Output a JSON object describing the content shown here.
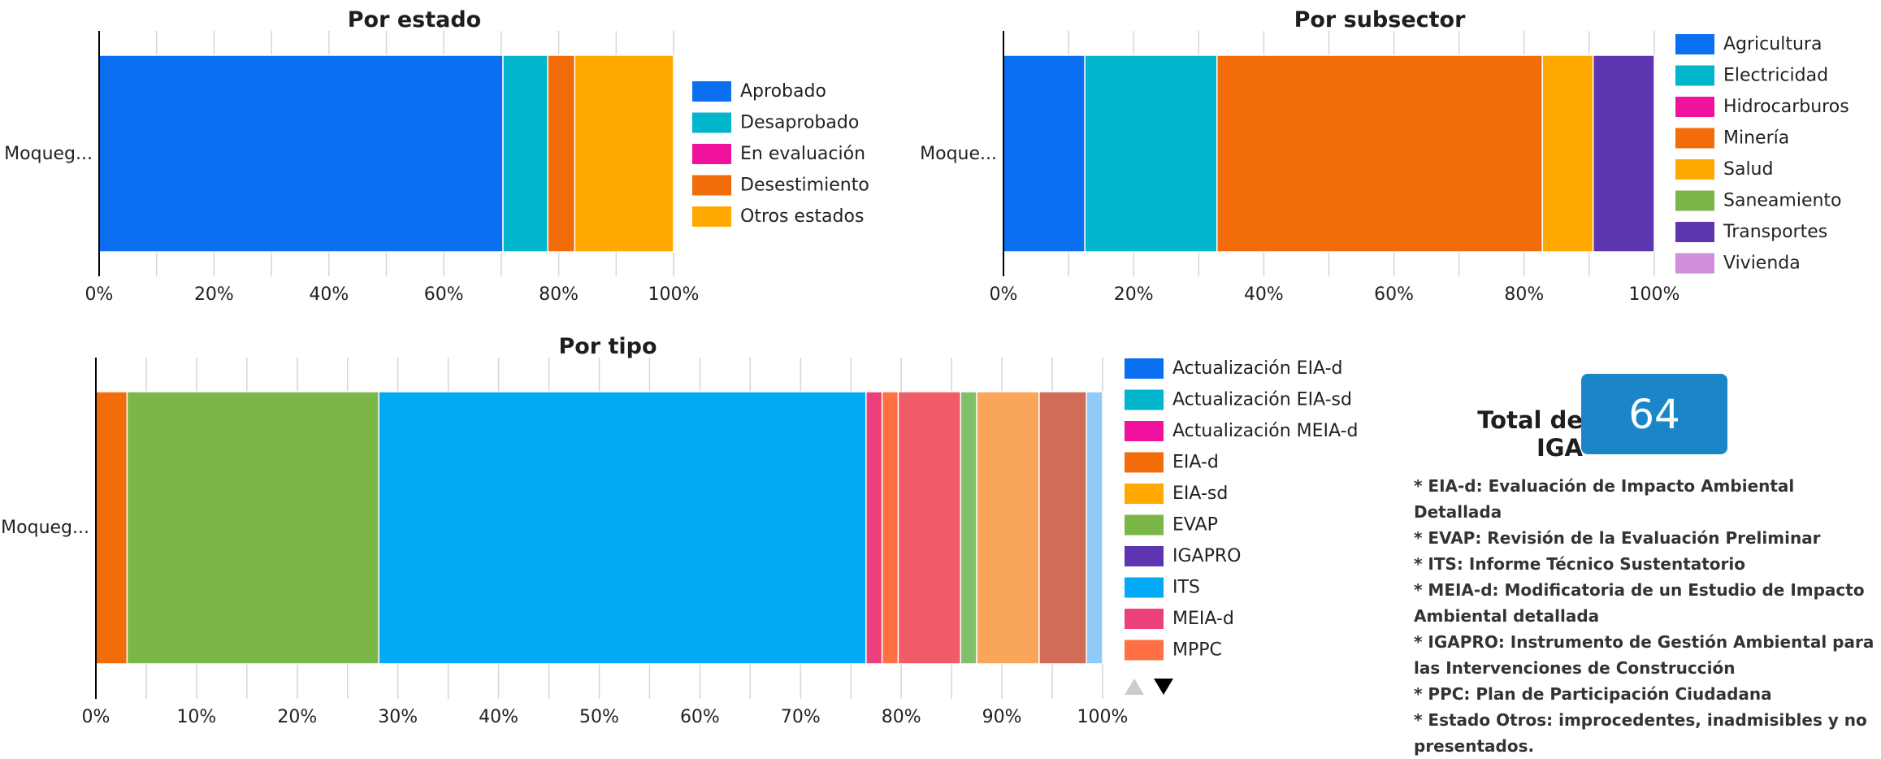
{
  "chart_data": [
    {
      "type": "bar",
      "orientation": "horizontal",
      "stacked": true,
      "title": "Por estado",
      "categories": [
        "Moqueg..."
      ],
      "series": [
        {
          "name": "Aprobado",
          "values": [
            70.3
          ],
          "color": "#0a6ff0"
        },
        {
          "name": "Desaprobado",
          "values": [
            7.8
          ],
          "color": "#00b5cc"
        },
        {
          "name": "En evaluación",
          "values": [
            0
          ],
          "color": "#f0119c"
        },
        {
          "name": "Desestimiento",
          "values": [
            4.7
          ],
          "color": "#f26d0a"
        },
        {
          "name": "Otros estados",
          "values": [
            17.2
          ],
          "color": "#ffa800"
        }
      ],
      "xlim": [
        0,
        100
      ],
      "xticks": [
        "0%",
        "20%",
        "40%",
        "60%",
        "80%",
        "100%"
      ],
      "legend_position": "right",
      "grid": true
    },
    {
      "type": "bar",
      "orientation": "horizontal",
      "stacked": true,
      "title": "Por subsector",
      "categories": [
        "Moque..."
      ],
      "series": [
        {
          "name": "Agricultura",
          "values": [
            12.5
          ],
          "color": "#0a6ff0"
        },
        {
          "name": "Electricidad",
          "values": [
            20.3
          ],
          "color": "#00b5cc"
        },
        {
          "name": "Hidrocarburos",
          "values": [
            0
          ],
          "color": "#f0119c"
        },
        {
          "name": "Minería",
          "values": [
            50
          ],
          "color": "#f26d0a"
        },
        {
          "name": "Salud",
          "values": [
            7.8
          ],
          "color": "#ffa800"
        },
        {
          "name": "Saneamiento",
          "values": [
            0
          ],
          "color": "#7ab648"
        },
        {
          "name": "Transportes",
          "values": [
            9.4
          ],
          "color": "#5e35b1"
        },
        {
          "name": "Vivienda",
          "values": [
            0
          ],
          "color": "#cf8fdb"
        }
      ],
      "xlim": [
        0,
        100
      ],
      "xticks": [
        "0%",
        "20%",
        "40%",
        "60%",
        "80%",
        "100%"
      ],
      "legend_position": "right",
      "grid": true
    },
    {
      "type": "bar",
      "orientation": "horizontal",
      "stacked": true,
      "title": "Por tipo",
      "categories": [
        "Moqueg..."
      ],
      "series": [
        {
          "name": "Actualización EIA-d",
          "values": [
            0
          ],
          "color": "#0a6ff0"
        },
        {
          "name": "Actualización EIA-sd",
          "values": [
            0
          ],
          "color": "#00b5cc"
        },
        {
          "name": "Actualización MEIA-d",
          "values": [
            0
          ],
          "color": "#f0119c"
        },
        {
          "name": "EIA-d",
          "values": [
            3.1
          ],
          "color": "#f26d0a"
        },
        {
          "name": "EIA-sd",
          "values": [
            0
          ],
          "color": "#ffa800"
        },
        {
          "name": "EVAP",
          "values": [
            25
          ],
          "color": "#7ab648"
        },
        {
          "name": "IGAPRO",
          "values": [
            0
          ],
          "color": "#5e35b1"
        },
        {
          "name": "ITS",
          "values": [
            48.4
          ],
          "color": "#03a9f4"
        },
        {
          "name": "MEIA-d",
          "values": [
            1.6
          ],
          "color": "#ec407a"
        },
        {
          "name": "MPPC",
          "values": [
            1.6
          ],
          "color": "#ff7043"
        },
        {
          "name": "",
          "values": [
            6.2
          ],
          "color": "#ef5b67"
        },
        {
          "name": "",
          "values": [
            1.6
          ],
          "color": "#81c06a"
        },
        {
          "name": "",
          "values": [
            6.2
          ],
          "color": "#f9a55a"
        },
        {
          "name": "",
          "values": [
            4.7
          ],
          "color": "#d06c58"
        },
        {
          "name": "",
          "values": [
            1.6
          ],
          "color": "#90caf9"
        }
      ],
      "xlim": [
        0,
        100
      ],
      "xticks": [
        "0%",
        "10%",
        "20%",
        "30%",
        "40%",
        "50%",
        "60%",
        "70%",
        "80%",
        "90%",
        "100%"
      ],
      "legend_position": "right",
      "grid": true
    }
  ],
  "total": {
    "label": "Total de IGA",
    "value": "64"
  },
  "notes": [
    "* EIA-d: Evaluación de Impacto Ambiental Detallada",
    "* EVAP: Revisión de la Evaluación Preliminar",
    "* ITS: Informe Técnico Sustentatorio",
    "* MEIA-d: Modificatoria de un Estudio de Impacto Ambiental detallada",
    "* IGAPRO: Instrumento de Gestión Ambiental para las Intervenciones de Construcción",
    "* PPC: Plan de Participación Ciudadana",
    "* Estado Otros: improcedentes, inadmisibles y no presentados."
  ],
  "legend_nav": {
    "up_icon": "triangle-up-icon",
    "down_icon": "triangle-down-icon"
  }
}
